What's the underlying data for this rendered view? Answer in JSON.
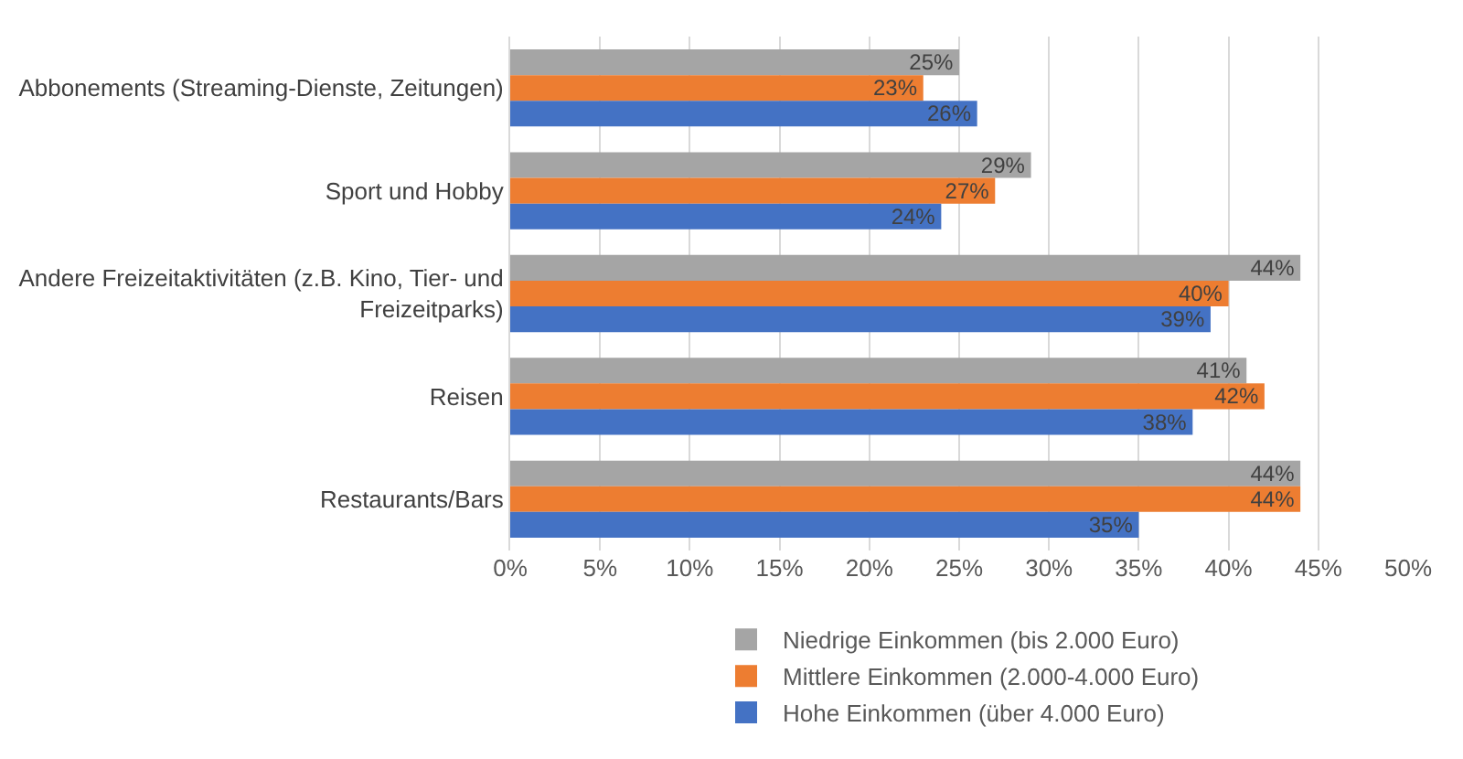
{
  "chart_data": {
    "type": "bar",
    "orientation": "horizontal",
    "categories": [
      "Abbonements (Streaming-Dienste, Zeitungen)",
      "Sport und Hobby",
      "Andere Freizeitaktivitäten (z.B. Kino, Tier- und Freizeitparks)",
      "Reisen",
      "Restaurants/Bars"
    ],
    "series": [
      {
        "name": "Niedrige Einkommen (bis 2.000 Euro)",
        "color": "#a5a5a5",
        "values": [
          25,
          29,
          44,
          41,
          44
        ],
        "value_labels": [
          "25%",
          "29%",
          "44%",
          "41%",
          "44%"
        ]
      },
      {
        "name": "Mittlere Einkommen (2.000-4.000 Euro)",
        "color": "#ed7d31",
        "values": [
          23,
          27,
          40,
          42,
          44
        ],
        "value_labels": [
          "23%",
          "27%",
          "40%",
          "42%",
          "44%"
        ]
      },
      {
        "name": "Hohe Einkommen (über 4.000 Euro)",
        "color": "#4472c4",
        "values": [
          26,
          24,
          39,
          38,
          35
        ],
        "value_labels": [
          "26%",
          "24%",
          "39%",
          "38%",
          "35%"
        ]
      }
    ],
    "xlim": [
      0,
      50
    ],
    "xticks": [
      {
        "value": 0,
        "label": "0%"
      },
      {
        "value": 5,
        "label": "5%"
      },
      {
        "value": 10,
        "label": "10%"
      },
      {
        "value": 15,
        "label": "15%"
      },
      {
        "value": 20,
        "label": "20%"
      },
      {
        "value": 25,
        "label": "25%"
      },
      {
        "value": 30,
        "label": "30%"
      },
      {
        "value": 35,
        "label": "35%"
      },
      {
        "value": 40,
        "label": "40%"
      },
      {
        "value": 45,
        "label": "45%"
      },
      {
        "value": 50,
        "label": "50%"
      }
    ],
    "grid": "x",
    "legend": "bottom"
  }
}
